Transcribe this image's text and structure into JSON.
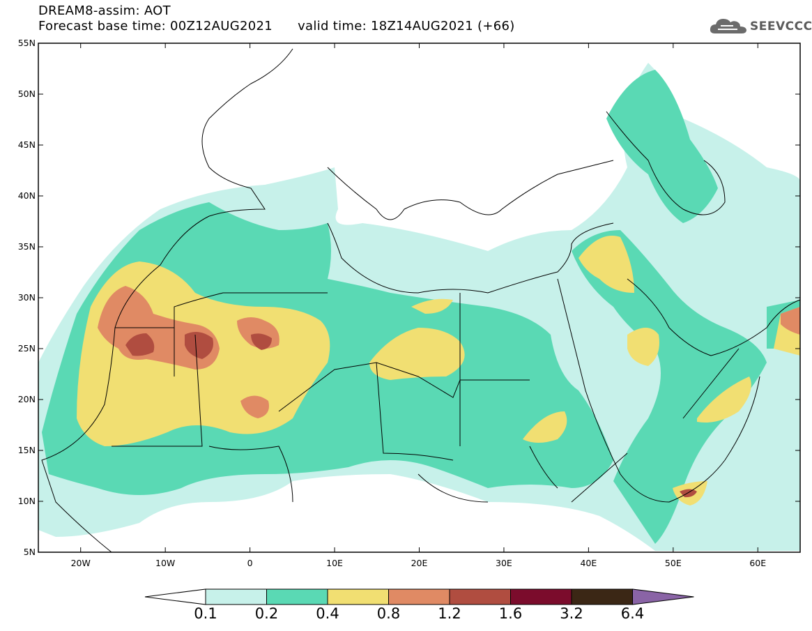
{
  "header": {
    "title": "DREAM8-assim: AOT",
    "base_time_label": "Forecast base time: 00Z12AUG2021",
    "valid_time_label": "valid time: 18Z14AUG2021 (+66)"
  },
  "logo": {
    "text": "SEEVCCC",
    "icon": "cloud-icon"
  },
  "map": {
    "lon_range": [
      -25,
      65
    ],
    "lat_range": [
      5,
      55
    ],
    "lat_ticks": [
      "5N",
      "10N",
      "15N",
      "20N",
      "25N",
      "30N",
      "35N",
      "40N",
      "45N",
      "50N",
      "55N"
    ],
    "lon_ticks": [
      "20W",
      "10W",
      "0",
      "10E",
      "20E",
      "30E",
      "40E",
      "50E",
      "60E"
    ]
  },
  "colorbar": {
    "labels": [
      "0.1",
      "0.2",
      "0.4",
      "0.8",
      "1.2",
      "1.6",
      "3.2",
      "6.4"
    ],
    "colors": [
      "#c7f1ea",
      "#5ad9b4",
      "#f1df72",
      "#e08a64",
      "#b04d40",
      "#7b0c2c",
      "#3b2715",
      "#8a64a6"
    ]
  }
}
